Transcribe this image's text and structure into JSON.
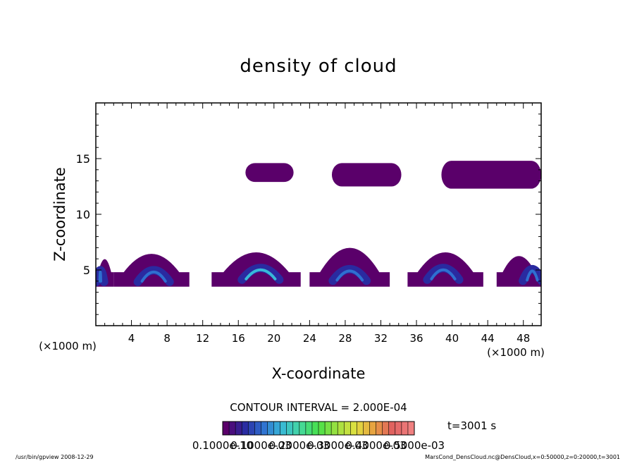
{
  "chart_data": {
    "type": "heatmap",
    "title": "density of cloud",
    "xlabel": "X-coordinate",
    "ylabel": "Z-coordinate",
    "x_unit_left": "(×1000 m)",
    "x_unit_right": "(×1000 m)",
    "xlim": [
      0,
      50
    ],
    "ylim": [
      0,
      20
    ],
    "x_ticks": [
      4,
      8,
      12,
      16,
      20,
      24,
      28,
      32,
      36,
      40,
      44,
      48
    ],
    "y_ticks": [
      5,
      10,
      15
    ],
    "contour_interval": "CONTOUR INTERVAL = 2.000E-04",
    "time_label": "t=3001 s",
    "colorbar": {
      "levels": 30,
      "tick_labels": [
        "0.1000e-10",
        "0.1000e-03",
        "0.2000e-03",
        "0.3000e-03",
        "0.4000e-03",
        "0.5000e-03"
      ],
      "colors": [
        "#5a006a",
        "#2a2aa0",
        "#2f6fd0",
        "#38b8d8",
        "#44d8a0",
        "#48e048",
        "#a0e040",
        "#e0e040",
        "#e8a040",
        "#e06060",
        "#f08080"
      ]
    },
    "cloud_regions": [
      {
        "layer": "upper",
        "x_range": [
          16.8,
          22.2
        ],
        "z_range": [
          12.9,
          14.6
        ],
        "peak_level": 0
      },
      {
        "layer": "upper",
        "x_range": [
          26.5,
          34.3
        ],
        "z_range": [
          12.5,
          14.6
        ],
        "peak_level": 0
      },
      {
        "layer": "upper",
        "x_range": [
          38.8,
          50.0
        ],
        "z_range": [
          12.3,
          14.8
        ],
        "peak_level": 0
      },
      {
        "layer": "lower",
        "x_range": [
          0.0,
          2.0
        ],
        "z_range": [
          3.5,
          6.3
        ],
        "peak_level": 2,
        "core_x": 0.5,
        "core_z": 4.5
      },
      {
        "layer": "lower",
        "x_range": [
          2.0,
          10.5
        ],
        "z_range": [
          3.5,
          7.0
        ],
        "peak_level": 2,
        "core_x": 6.5,
        "core_z": 4.5
      },
      {
        "layer": "lower",
        "x_range": [
          13.0,
          23.0
        ],
        "z_range": [
          3.5,
          7.2
        ],
        "peak_level": 3,
        "core_x": 18.5,
        "core_z": 4.7
      },
      {
        "layer": "lower",
        "x_range": [
          24.0,
          33.0
        ],
        "z_range": [
          3.5,
          7.8
        ],
        "peak_level": 2,
        "core_x": 28.5,
        "core_z": 4.6
      },
      {
        "layer": "lower",
        "x_range": [
          35.0,
          43.5
        ],
        "z_range": [
          3.5,
          7.2
        ],
        "peak_level": 2,
        "core_x": 39.0,
        "core_z": 4.7
      },
      {
        "layer": "lower",
        "x_range": [
          45.0,
          50.0
        ],
        "z_range": [
          3.5,
          6.7
        ],
        "peak_level": 2,
        "core_x": 49.0,
        "core_z": 4.6
      }
    ]
  },
  "footer": {
    "program": "/usr/bin/gpview   2008-12-29",
    "source": "MarsCond_DensCloud.nc@DensCloud,x=0:50000,z=0:20000,t=3001"
  }
}
